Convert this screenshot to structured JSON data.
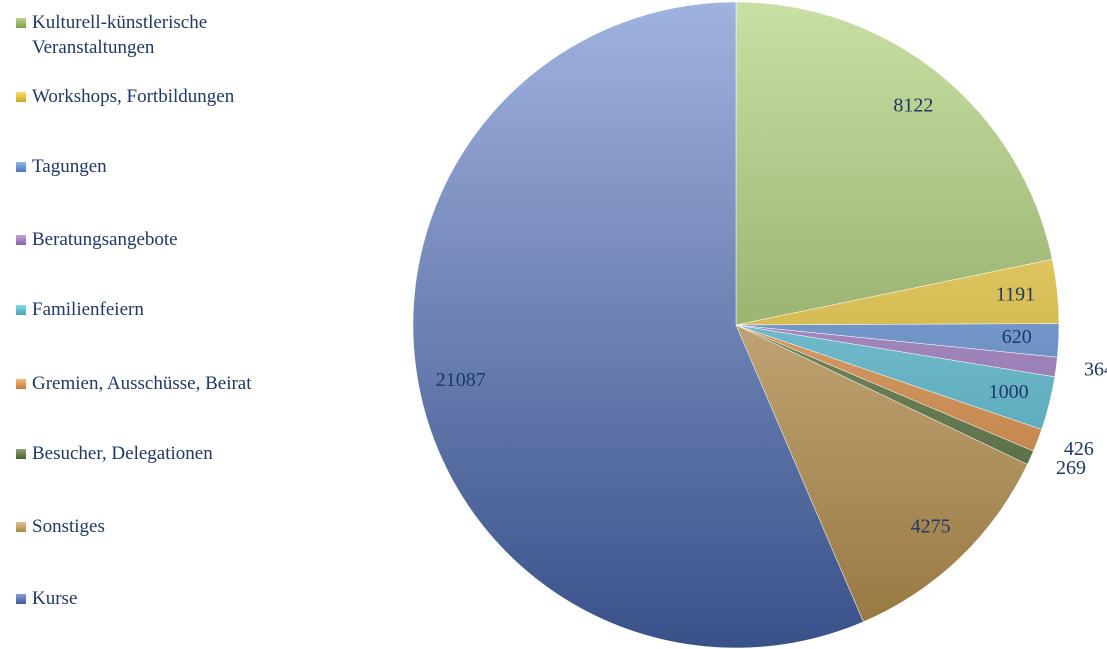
{
  "chart_data": {
    "type": "pie",
    "categories": [
      "Kulturell-künstlerische Veranstaltungen",
      "Workshops, Fortbildungen",
      "Tagungen",
      "Beratungsangebote",
      "Familienfeiern",
      "Gremien, Ausschüsse, Beirat",
      "Besucher, Delegationen",
      "Sonstiges",
      "Kurse"
    ],
    "values": [
      8122,
      1191,
      620,
      364,
      1000,
      426,
      269,
      4275,
      21087
    ],
    "colors": [
      "#9cc45a",
      "#fcd12a",
      "#5d95e6",
      "#a77cd0",
      "#55cde8",
      "#f79a45",
      "#5b7a3c",
      "#d6a85a",
      "#5273c4"
    ],
    "legend": "left"
  }
}
